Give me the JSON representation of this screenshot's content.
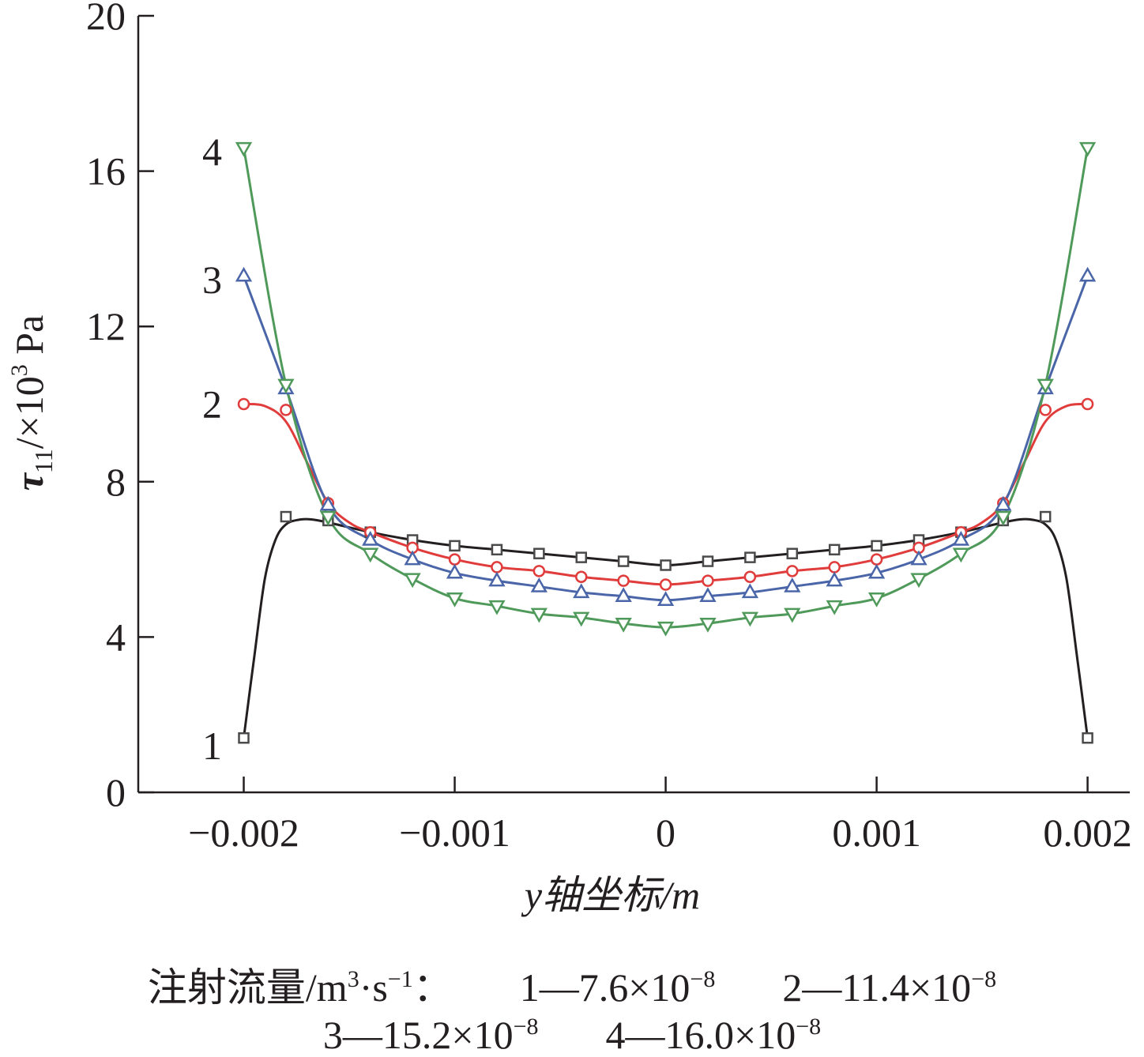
{
  "chart_data": {
    "type": "line",
    "xlabel": "y轴坐标/m",
    "ylabel": "τ11/×103 Pa",
    "ylabel_parts": {
      "symbol": "τ",
      "subscript": "11",
      "unit_prefix": "/×10",
      "exponent": "3",
      "unit": " Pa"
    },
    "xlim": [
      -0.0025,
      0.0022
    ],
    "ylim": [
      0,
      20
    ],
    "x_ticks": [
      -0.002,
      -0.001,
      0,
      0.001,
      0.002
    ],
    "x_tick_labels": [
      "−0.002",
      "−0.001",
      "0",
      "0.001",
      "0.002"
    ],
    "y_ticks": [
      0,
      4,
      8,
      12,
      16,
      20
    ],
    "y_tick_labels": [
      "0",
      "4",
      "8",
      "12",
      "16",
      "20"
    ],
    "grid": false,
    "series": [
      {
        "name": "1",
        "color": "#231f20",
        "marker": "square",
        "x": [
          -0.002,
          -0.0018,
          -0.0016,
          -0.0014,
          -0.0012,
          -0.001,
          -0.0008,
          -0.0006,
          -0.0004,
          -0.0002,
          0,
          0.0002,
          0.0004,
          0.0006,
          0.0008,
          0.001,
          0.0012,
          0.0014,
          0.0016,
          0.0018,
          0.002
        ],
        "y": [
          1.4,
          7.1,
          7.0,
          6.7,
          6.5,
          6.35,
          6.25,
          6.15,
          6.05,
          5.95,
          5.85,
          5.95,
          6.05,
          6.15,
          6.25,
          6.35,
          6.5,
          6.7,
          7.0,
          7.1,
          1.4
        ],
        "curve": [
          [
            -0.002,
            1.4
          ],
          [
            -0.00195,
            3.5
          ],
          [
            -0.0019,
            5.5
          ],
          [
            -0.00185,
            6.5
          ],
          [
            -0.0018,
            6.9
          ],
          [
            -0.00174,
            7.02
          ],
          [
            -0.00168,
            7.03
          ],
          [
            -0.0016,
            6.95
          ],
          [
            -0.0014,
            6.7
          ],
          [
            -0.0012,
            6.5
          ],
          [
            -0.001,
            6.35
          ],
          [
            -0.0008,
            6.25
          ],
          [
            -0.0006,
            6.15
          ],
          [
            -0.0004,
            6.05
          ],
          [
            -0.0002,
            5.95
          ],
          [
            0,
            5.85
          ],
          [
            0.0002,
            5.95
          ],
          [
            0.0004,
            6.05
          ],
          [
            0.0006,
            6.15
          ],
          [
            0.0008,
            6.25
          ],
          [
            0.001,
            6.35
          ],
          [
            0.0012,
            6.5
          ],
          [
            0.0014,
            6.7
          ],
          [
            0.0016,
            6.95
          ],
          [
            0.00168,
            7.03
          ],
          [
            0.00174,
            7.02
          ],
          [
            0.0018,
            6.9
          ],
          [
            0.00185,
            6.5
          ],
          [
            0.0019,
            5.5
          ],
          [
            0.00195,
            3.5
          ],
          [
            0.002,
            1.4
          ]
        ]
      },
      {
        "name": "2",
        "color": "#e03c3c",
        "marker": "circle",
        "x": [
          -0.002,
          -0.0018,
          -0.0016,
          -0.0014,
          -0.0012,
          -0.001,
          -0.0008,
          -0.0006,
          -0.0004,
          -0.0002,
          0,
          0.0002,
          0.0004,
          0.0006,
          0.0008,
          0.001,
          0.0012,
          0.0014,
          0.0016,
          0.0018,
          0.002
        ],
        "y": [
          10.0,
          9.85,
          7.45,
          6.7,
          6.3,
          6.0,
          5.8,
          5.7,
          5.55,
          5.45,
          5.35,
          5.45,
          5.55,
          5.7,
          5.8,
          6.0,
          6.3,
          6.7,
          7.45,
          9.85,
          10.0
        ],
        "curve": [
          [
            -0.002,
            10.0
          ],
          [
            -0.0019,
            9.95
          ],
          [
            -0.0018,
            9.55
          ],
          [
            -0.0017,
            8.5
          ],
          [
            -0.0016,
            7.45
          ],
          [
            -0.0015,
            6.95
          ],
          [
            -0.0014,
            6.7
          ],
          [
            -0.0012,
            6.3
          ],
          [
            -0.001,
            6.0
          ],
          [
            -0.0008,
            5.8
          ],
          [
            -0.0006,
            5.7
          ],
          [
            -0.0004,
            5.55
          ],
          [
            -0.0002,
            5.45
          ],
          [
            0,
            5.35
          ],
          [
            0.0002,
            5.45
          ],
          [
            0.0004,
            5.55
          ],
          [
            0.0006,
            5.7
          ],
          [
            0.0008,
            5.8
          ],
          [
            0.001,
            6.0
          ],
          [
            0.0012,
            6.3
          ],
          [
            0.0014,
            6.7
          ],
          [
            0.0015,
            6.95
          ],
          [
            0.0016,
            7.45
          ],
          [
            0.0017,
            8.5
          ],
          [
            0.0018,
            9.55
          ],
          [
            0.0019,
            9.95
          ],
          [
            0.002,
            10.0
          ]
        ]
      },
      {
        "name": "3",
        "color": "#4a65a8",
        "marker": "triangle-up",
        "x": [
          -0.002,
          -0.0018,
          -0.0016,
          -0.0014,
          -0.0012,
          -0.001,
          -0.0008,
          -0.0006,
          -0.0004,
          -0.0002,
          0,
          0.0002,
          0.0004,
          0.0006,
          0.0008,
          0.001,
          0.0012,
          0.0014,
          0.0016,
          0.0018,
          0.002
        ],
        "y": [
          13.3,
          10.4,
          7.4,
          6.5,
          6.0,
          5.65,
          5.45,
          5.3,
          5.15,
          5.05,
          4.95,
          5.05,
          5.15,
          5.3,
          5.45,
          5.65,
          6.0,
          6.5,
          7.4,
          10.4,
          13.3
        ]
      },
      {
        "name": "4",
        "color": "#4f9a5a",
        "marker": "triangle-down",
        "x": [
          -0.002,
          -0.0018,
          -0.0016,
          -0.0014,
          -0.0012,
          -0.001,
          -0.0008,
          -0.0006,
          -0.0004,
          -0.0002,
          0,
          0.0002,
          0.0004,
          0.0006,
          0.0008,
          0.001,
          0.0012,
          0.0014,
          0.0016,
          0.0018,
          0.002
        ],
        "y": [
          16.6,
          10.5,
          7.1,
          6.15,
          5.5,
          5.0,
          4.8,
          4.6,
          4.5,
          4.35,
          4.25,
          4.35,
          4.5,
          4.6,
          4.8,
          5.0,
          5.5,
          6.15,
          7.1,
          10.5,
          16.6
        ]
      }
    ],
    "curve_labels": [
      {
        "text": "1",
        "x": -0.00215,
        "y": 1.2
      },
      {
        "text": "2",
        "x": -0.00215,
        "y": 10.0
      },
      {
        "text": "3",
        "x": -0.00215,
        "y": 13.2
      },
      {
        "text": "4",
        "x": -0.00215,
        "y": 16.5
      }
    ],
    "legend": {
      "placement": "bottom",
      "title": {
        "main": "注射流量/m",
        "sup": "3",
        "mid": "·s",
        "sup2": "−1",
        "end": "："
      },
      "entries": [
        {
          "prefix": "1—7.6×10",
          "exponent": "−8"
        },
        {
          "prefix": "2—11.4×10",
          "exponent": "−8"
        },
        {
          "prefix": "3—15.2×10",
          "exponent": "−8"
        },
        {
          "prefix": "4—16.0×10",
          "exponent": "−8"
        }
      ]
    }
  }
}
